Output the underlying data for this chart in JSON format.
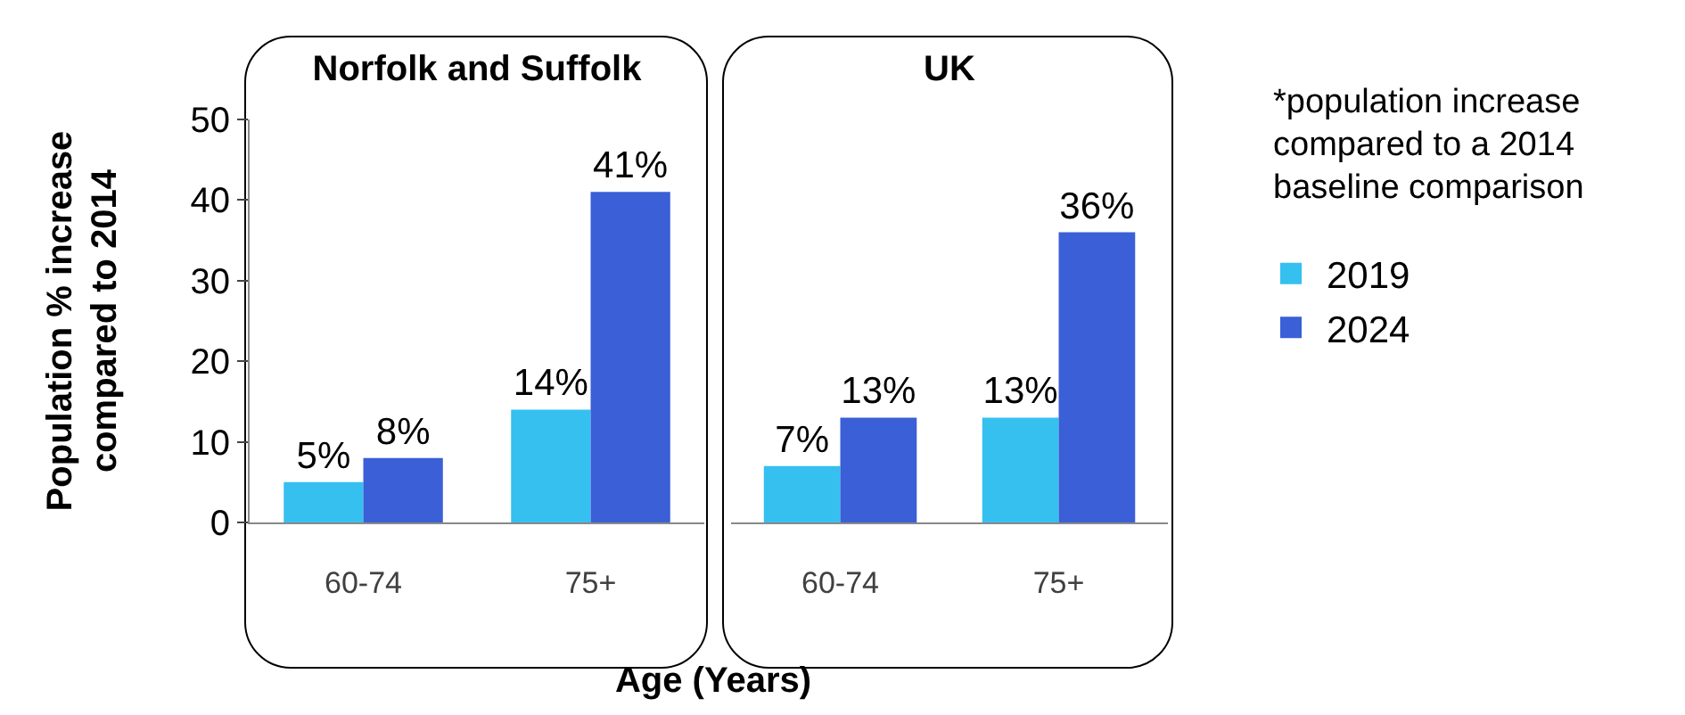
{
  "chart_data": [
    {
      "type": "bar",
      "title": "Norfolk and Suffolk",
      "ylabel": "Population % increase compared to 2014",
      "xlabel": "Age (Years)",
      "categories": [
        "60-74",
        "75+"
      ],
      "series": [
        {
          "color": "#35c0f0",
          "values": [
            5,
            14
          ],
          "value_labels": [
            "5%",
            "14%"
          ]
        },
        {
          "color": "#3a5fd6",
          "values": [
            8,
            41
          ],
          "value_labels": [
            "8%",
            "41%"
          ]
        }
      ],
      "ylim": [
        0,
        50
      ],
      "yticks": [
        0,
        10,
        20,
        30,
        40,
        50
      ],
      "grid": false,
      "legend": false
    },
    {
      "type": "bar",
      "title": "UK",
      "categories": [
        "60-74",
        "75+"
      ],
      "series": [
        {
          "name": "2019",
          "color": "#35c0f0",
          "values": [
            7,
            13
          ],
          "value_labels": [
            "7%",
            "13%"
          ]
        },
        {
          "name": "2024",
          "color": "#3a5fd6",
          "values": [
            13,
            36
          ],
          "value_labels": [
            "13%",
            "36%"
          ]
        }
      ],
      "ylim": [
        0,
        50
      ],
      "yticks": [
        0,
        10,
        20,
        30,
        40,
        50
      ],
      "tick_labels": "x",
      "grid": false,
      "legend": "right",
      "annotations": [
        "*population increase compared to a 2014 baseline comparison"
      ]
    }
  ]
}
